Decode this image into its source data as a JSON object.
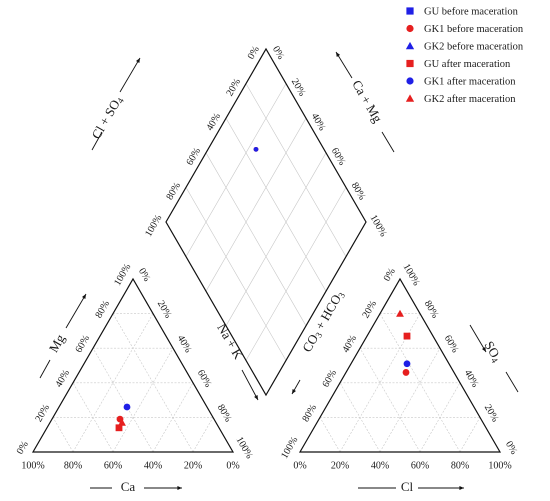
{
  "chart_data": {
    "type": "scatter",
    "subtype": "piper-diagram",
    "colors": {
      "blue": "#1f1fe6",
      "red": "#e61f1f"
    },
    "legend": {
      "placement": "top-right",
      "entries": [
        {
          "label": "GU before maceration",
          "marker": "square",
          "color": "#1f1fe6"
        },
        {
          "label": "GK1 before maceration",
          "marker": "circle",
          "color": "#e61f1f"
        },
        {
          "label": "GK2 before maceration",
          "marker": "triangle",
          "color": "#1f1fe6"
        },
        {
          "label": "GU after maceration",
          "marker": "square",
          "color": "#e61f1f"
        },
        {
          "label": "GK1 after maceration",
          "marker": "circle",
          "color": "#1f1fe6"
        },
        {
          "label": "GK2 after maceration",
          "marker": "triangle",
          "color": "#e61f1f"
        }
      ]
    },
    "ticks": [
      "0%",
      "20%",
      "40%",
      "60%",
      "80%",
      "100%"
    ],
    "cation_triangle": {
      "labels": {
        "ca": "Ca",
        "mg": "Mg",
        "nak": "Na + K"
      },
      "points": [
        {
          "series": 4,
          "ca": 40,
          "mg": 26
        },
        {
          "series": 1,
          "ca": 47,
          "mg": 19
        },
        {
          "series": 5,
          "ca": 47,
          "mg": 17
        },
        {
          "series": 3,
          "ca": 50,
          "mg": 14
        }
      ]
    },
    "anion_triangle": {
      "labels": {
        "cl": "Cl",
        "so4": "SO",
        "so4_sub": "4",
        "co3hco3": "CO",
        "co3hco3_sub": "3",
        "co3hco3_tail": " + HCO",
        "co3hco3_tail_sub": "3"
      },
      "points": [
        {
          "series": 5,
          "cl": 10,
          "so4": 80
        },
        {
          "series": 3,
          "cl": 20,
          "so4": 67
        },
        {
          "series": 4,
          "cl": 28,
          "so4": 51
        },
        {
          "series": 1,
          "cl": 30,
          "so4": 46
        }
      ]
    },
    "diamond": {
      "labels": {
        "clso4": "Cl + SO",
        "clso4_sub": "4",
        "camg": "Ca + Mg"
      },
      "points": [
        {
          "series": 1,
          "clso4": 76,
          "camg": 66
        },
        {
          "series": 4,
          "clso4": 76,
          "camg": 66
        }
      ]
    }
  }
}
